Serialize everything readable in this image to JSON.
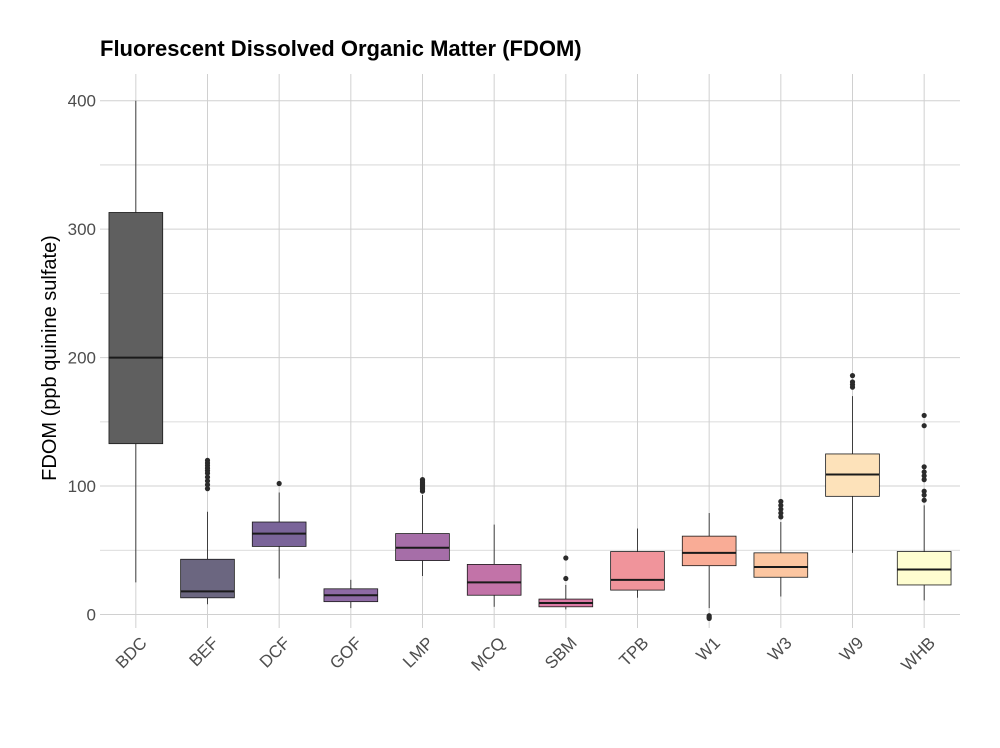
{
  "chart_data": {
    "type": "boxplot",
    "title": "Fluorescent Dissolved Organic Matter (FDOM)",
    "xlabel": "",
    "ylabel": "FDOM (ppb quinine sulfate)",
    "ylim": [
      -5,
      410
    ],
    "yticks": [
      0,
      100,
      200,
      300,
      400
    ],
    "grid": true,
    "legend": "none",
    "categories": [
      "BDC",
      "BEF",
      "DCF",
      "GOF",
      "LMP",
      "MCQ",
      "SBM",
      "TPB",
      "W1",
      "W3",
      "W9",
      "WHB"
    ],
    "boxes": [
      {
        "category": "BDC",
        "min": 25,
        "q1": 133,
        "median": 200,
        "q3": 313,
        "max": 400,
        "outliers": [],
        "color": "#5f5f5f"
      },
      {
        "category": "BEF",
        "min": 8,
        "q1": 13,
        "median": 18,
        "q3": 43,
        "max": 80,
        "outliers": [
          98,
          101,
          104,
          107,
          110,
          112,
          114,
          116,
          118,
          120
        ],
        "color": "#6b6680"
      },
      {
        "category": "DCF",
        "min": 28,
        "q1": 53,
        "median": 63,
        "q3": 72,
        "max": 95,
        "outliers": [
          102
        ],
        "color": "#7a6499"
      },
      {
        "category": "GOF",
        "min": 5,
        "q1": 10,
        "median": 15,
        "q3": 20,
        "max": 27,
        "outliers": [],
        "color": "#8e6aa4"
      },
      {
        "category": "LMP",
        "min": 30,
        "q1": 42,
        "median": 52,
        "q3": 63,
        "max": 93,
        "outliers": [
          96,
          97,
          98,
          99,
          100,
          101,
          102,
          103,
          104,
          105
        ],
        "color": "#a66ea8"
      },
      {
        "category": "MCQ",
        "min": 6,
        "q1": 15,
        "median": 25,
        "q3": 39,
        "max": 70,
        "outliers": [],
        "color": "#c273a8"
      },
      {
        "category": "SBM",
        "min": 4,
        "q1": 6,
        "median": 9,
        "q3": 12,
        "max": 23,
        "outliers": [
          28,
          44
        ],
        "color": "#db7aa5"
      },
      {
        "category": "TPB",
        "min": 13,
        "q1": 19,
        "median": 27,
        "q3": 49,
        "max": 67,
        "outliers": [],
        "color": "#f0949b"
      },
      {
        "category": "W1",
        "min": 5,
        "q1": 38,
        "median": 48,
        "q3": 61,
        "max": 79,
        "outliers": [
          -1,
          -2,
          -3
        ],
        "color": "#f9ac96"
      },
      {
        "category": "W3",
        "min": 14,
        "q1": 29,
        "median": 37,
        "q3": 48,
        "max": 72,
        "outliers": [
          76,
          79,
          82,
          85,
          88
        ],
        "color": "#fcc6a1"
      },
      {
        "category": "W9",
        "min": 48,
        "q1": 92,
        "median": 109,
        "q3": 125,
        "max": 170,
        "outliers": [
          177,
          179,
          181,
          186
        ],
        "color": "#fde2ba"
      },
      {
        "category": "WHB",
        "min": 11,
        "q1": 23,
        "median": 35,
        "q3": 49,
        "max": 85,
        "outliers": [
          89,
          93,
          96,
          105,
          108,
          111,
          115,
          147,
          155
        ],
        "color": "#fefdd0"
      }
    ]
  }
}
